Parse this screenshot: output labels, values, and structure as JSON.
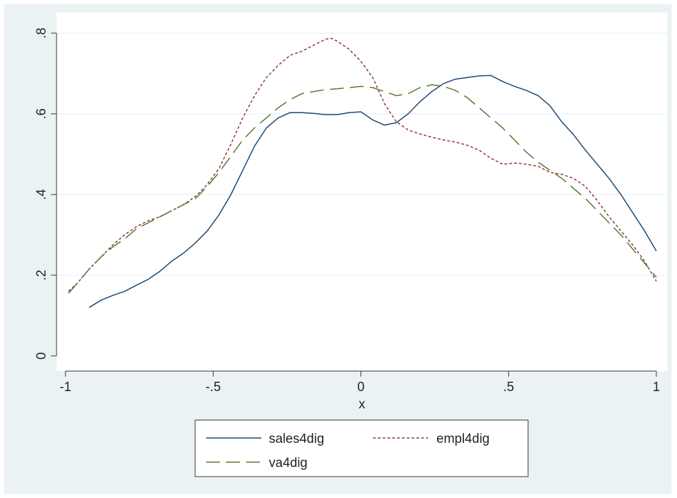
{
  "chart_data": {
    "type": "line",
    "title": "",
    "xlabel": "x",
    "ylabel": "",
    "xlim": [
      -1,
      1
    ],
    "ylim": [
      0,
      0.8
    ],
    "x_ticks": [
      -1,
      -0.5,
      0,
      0.5,
      1
    ],
    "x_tick_labels": [
      "-1",
      "-.5",
      "0",
      ".5",
      "1"
    ],
    "y_ticks": [
      0,
      0.2,
      0.4,
      0.6,
      0.8
    ],
    "y_tick_labels": [
      "0",
      ".2",
      ".4",
      ".6",
      ".8"
    ],
    "grid": "horizontal",
    "legend_position": "bottom",
    "colors": {
      "background": "#eaf2f3",
      "plot": "#ffffff",
      "grid": "#e4eef0",
      "sales4dig": "#1a476f",
      "empl4dig": "#90353b",
      "va4dig": "#55752f"
    },
    "series": [
      {
        "name": "sales4dig",
        "style": "solid",
        "x": [
          -0.92,
          -0.88,
          -0.84,
          -0.8,
          -0.76,
          -0.72,
          -0.68,
          -0.64,
          -0.6,
          -0.56,
          -0.52,
          -0.48,
          -0.44,
          -0.4,
          -0.36,
          -0.32,
          -0.28,
          -0.24,
          -0.2,
          -0.16,
          -0.12,
          -0.08,
          -0.04,
          0.0,
          0.04,
          0.08,
          0.12,
          0.16,
          0.2,
          0.24,
          0.28,
          0.32,
          0.36,
          0.4,
          0.44,
          0.48,
          0.52,
          0.56,
          0.6,
          0.64,
          0.68,
          0.72,
          0.76,
          0.8,
          0.84,
          0.88,
          0.92,
          0.96,
          1.0
        ],
        "y": [
          0.12,
          0.138,
          0.15,
          0.16,
          0.175,
          0.19,
          0.21,
          0.235,
          0.255,
          0.28,
          0.31,
          0.35,
          0.4,
          0.46,
          0.52,
          0.565,
          0.59,
          0.603,
          0.603,
          0.601,
          0.598,
          0.598,
          0.603,
          0.605,
          0.585,
          0.572,
          0.578,
          0.6,
          0.63,
          0.655,
          0.675,
          0.686,
          0.69,
          0.694,
          0.695,
          0.68,
          0.668,
          0.658,
          0.645,
          0.62,
          0.58,
          0.548,
          0.51,
          0.475,
          0.44,
          0.4,
          0.355,
          0.31,
          0.26
        ]
      },
      {
        "name": "empl4dig",
        "style": "dotted",
        "x": [
          -0.99,
          -0.96,
          -0.92,
          -0.88,
          -0.84,
          -0.8,
          -0.76,
          -0.72,
          -0.68,
          -0.64,
          -0.6,
          -0.56,
          -0.52,
          -0.48,
          -0.44,
          -0.4,
          -0.36,
          -0.32,
          -0.28,
          -0.24,
          -0.2,
          -0.16,
          -0.12,
          -0.1,
          -0.08,
          -0.04,
          0.0,
          0.04,
          0.08,
          0.12,
          0.16,
          0.2,
          0.24,
          0.28,
          0.32,
          0.36,
          0.4,
          0.44,
          0.48,
          0.52,
          0.56,
          0.6,
          0.64,
          0.68,
          0.72,
          0.76,
          0.8,
          0.84,
          0.88,
          0.92,
          0.96,
          1.0
        ],
        "y": [
          0.16,
          0.18,
          0.215,
          0.245,
          0.275,
          0.3,
          0.32,
          0.335,
          0.345,
          0.36,
          0.375,
          0.395,
          0.425,
          0.465,
          0.525,
          0.59,
          0.645,
          0.69,
          0.72,
          0.745,
          0.755,
          0.77,
          0.785,
          0.787,
          0.78,
          0.76,
          0.73,
          0.69,
          0.625,
          0.58,
          0.56,
          0.55,
          0.542,
          0.535,
          0.53,
          0.522,
          0.51,
          0.49,
          0.475,
          0.478,
          0.475,
          0.47,
          0.455,
          0.45,
          0.44,
          0.42,
          0.385,
          0.345,
          0.31,
          0.275,
          0.235,
          0.185
        ]
      },
      {
        "name": "va4dig",
        "style": "dashed",
        "x": [
          -0.99,
          -0.96,
          -0.92,
          -0.88,
          -0.84,
          -0.8,
          -0.76,
          -0.72,
          -0.68,
          -0.64,
          -0.6,
          -0.56,
          -0.52,
          -0.48,
          -0.44,
          -0.4,
          -0.36,
          -0.32,
          -0.28,
          -0.24,
          -0.2,
          -0.16,
          -0.12,
          -0.08,
          -0.04,
          0.0,
          0.04,
          0.08,
          0.12,
          0.16,
          0.2,
          0.24,
          0.28,
          0.32,
          0.36,
          0.4,
          0.44,
          0.48,
          0.52,
          0.56,
          0.6,
          0.64,
          0.68,
          0.72,
          0.76,
          0.8,
          0.84,
          0.88,
          0.92,
          0.96,
          1.0
        ],
        "y": [
          0.155,
          0.18,
          0.215,
          0.245,
          0.27,
          0.29,
          0.315,
          0.33,
          0.345,
          0.36,
          0.375,
          0.39,
          0.42,
          0.455,
          0.495,
          0.535,
          0.565,
          0.59,
          0.615,
          0.635,
          0.65,
          0.655,
          0.66,
          0.662,
          0.665,
          0.668,
          0.665,
          0.655,
          0.645,
          0.65,
          0.665,
          0.672,
          0.668,
          0.658,
          0.64,
          0.615,
          0.59,
          0.565,
          0.535,
          0.505,
          0.48,
          0.46,
          0.44,
          0.415,
          0.39,
          0.36,
          0.33,
          0.3,
          0.265,
          0.23,
          0.195
        ]
      }
    ]
  }
}
